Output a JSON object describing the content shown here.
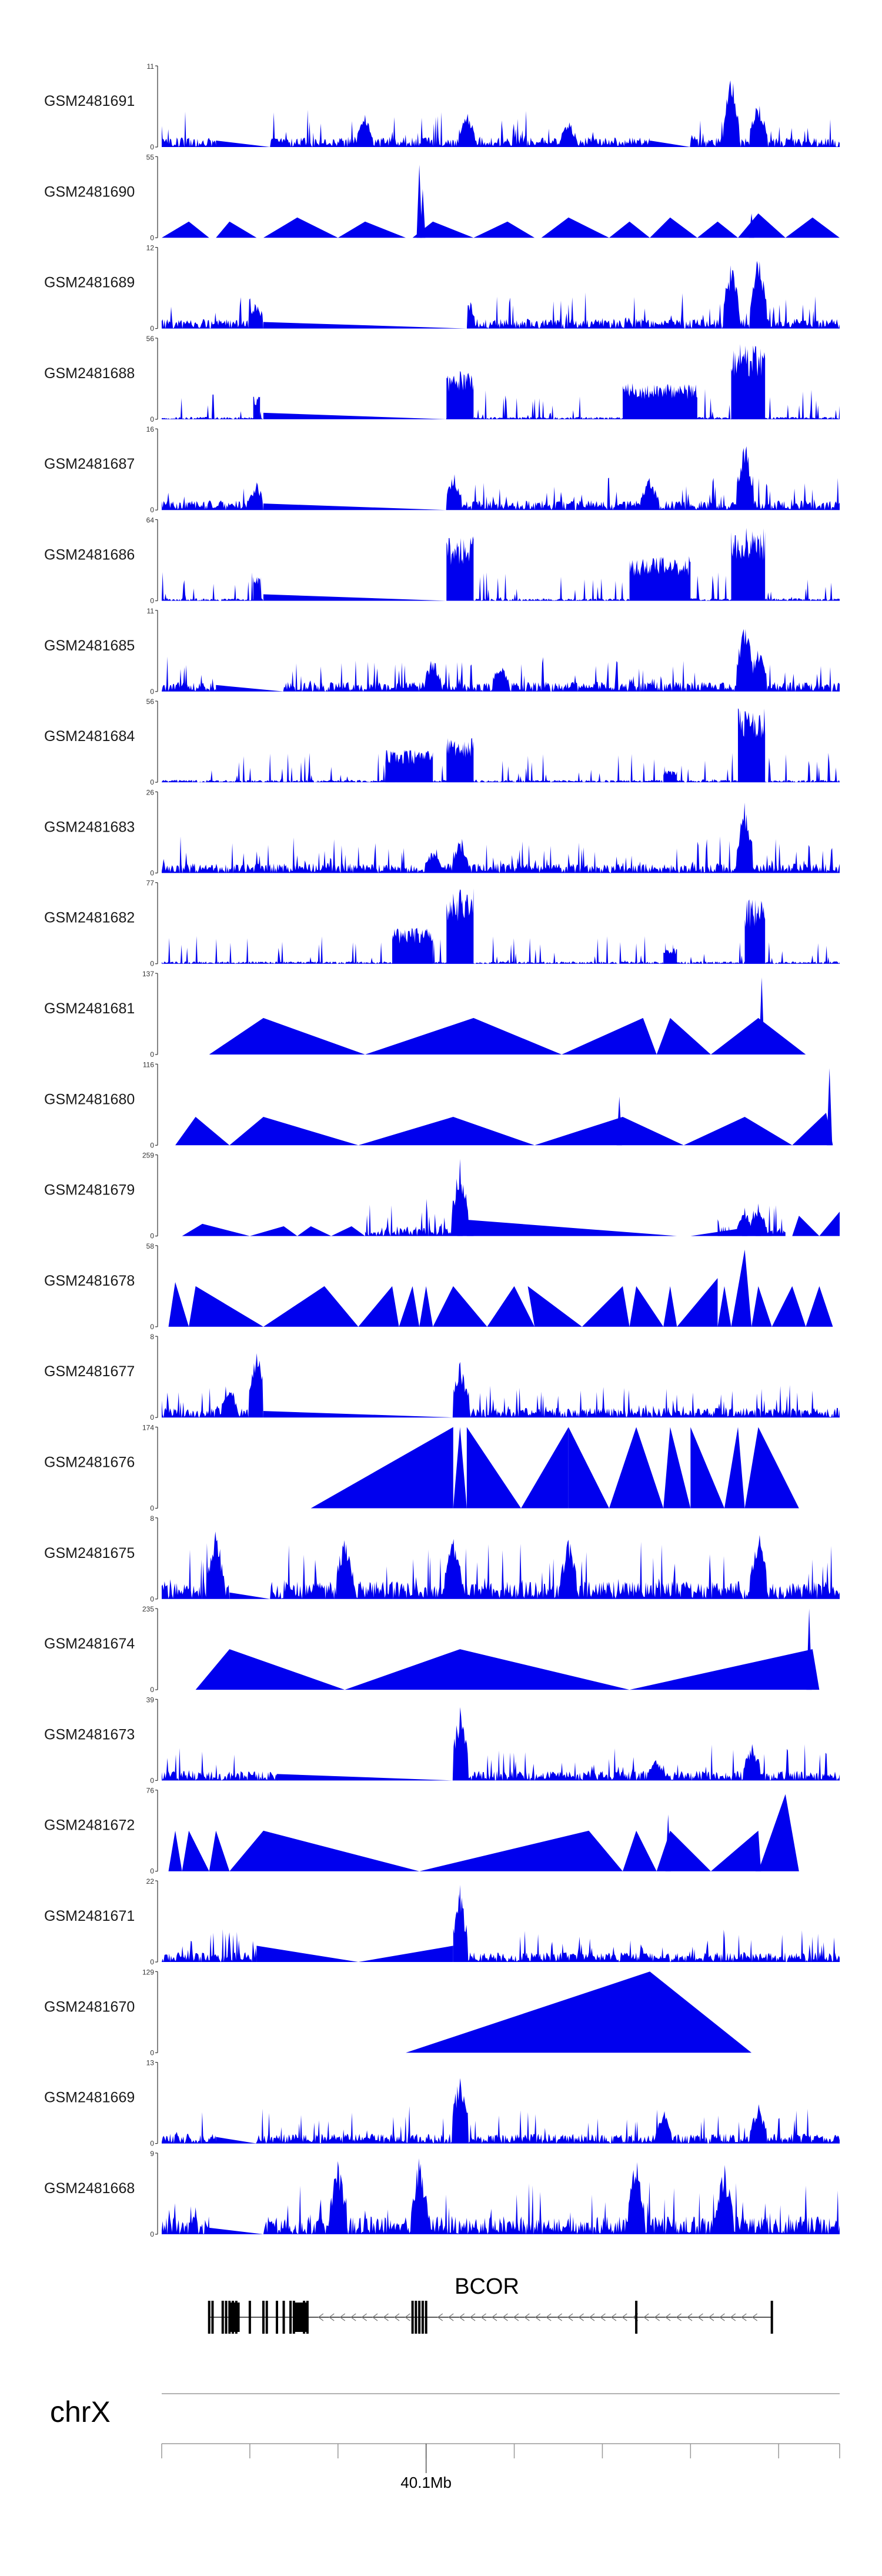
{
  "chart_data": {
    "type": "area",
    "title": "",
    "xlabel": "",
    "ylabel": "",
    "chromosome": "chrX",
    "gene": "BCOR",
    "position_label": "40.1Mb",
    "fill_color": "#0000EE",
    "x_range_mb": [
      39.98,
      40.24
    ],
    "tracks": [
      {
        "name": "GSM2481691",
        "ymax_label": "11",
        "ymin_label": "0",
        "ymax": 11,
        "style": "dense",
        "peaks": [
          [
            0.14,
            0.35
          ],
          [
            0.3,
            0.4
          ],
          [
            0.45,
            0.5
          ],
          [
            0.6,
            0.35
          ],
          [
            0.84,
            0.95
          ],
          [
            0.88,
            0.6
          ]
        ],
        "gaps": [
          [
            0.08,
            0.16
          ],
          [
            0.72,
            0.78
          ]
        ]
      },
      {
        "name": "GSM2481690",
        "ymax_label": "55",
        "ymin_label": "0",
        "ymax": 55,
        "style": "spiky",
        "tri": [
          [
            0.0,
            0.07,
            0.04,
            0.2
          ],
          [
            0.08,
            0.14,
            0.1,
            0.2
          ],
          [
            0.15,
            0.26,
            0.2,
            0.25
          ],
          [
            0.26,
            0.36,
            0.3,
            0.2
          ],
          [
            0.37,
            0.46,
            0.4,
            0.2
          ],
          [
            0.46,
            0.55,
            0.51,
            0.2
          ],
          [
            0.56,
            0.66,
            0.6,
            0.25
          ],
          [
            0.66,
            0.72,
            0.69,
            0.2
          ],
          [
            0.72,
            0.79,
            0.75,
            0.25
          ],
          [
            0.79,
            0.85,
            0.82,
            0.2
          ],
          [
            0.85,
            0.92,
            0.88,
            0.3
          ],
          [
            0.92,
            1.0,
            0.96,
            0.25
          ]
        ],
        "peaks": [
          [
            0.38,
            0.9
          ],
          [
            0.385,
            0.6
          ],
          [
            0.87,
            0.3
          ]
        ]
      },
      {
        "name": "GSM2481689",
        "ymax_label": "12",
        "ymin_label": "0",
        "ymax": 12,
        "style": "dense",
        "peaks": [
          [
            0.14,
            0.35
          ],
          [
            0.45,
            0.45
          ],
          [
            0.84,
            0.85
          ],
          [
            0.88,
            0.95
          ]
        ],
        "gaps": [
          [
            0.15,
            0.45
          ]
        ]
      },
      {
        "name": "GSM2481688",
        "ymax_label": "56",
        "ymin_label": "0",
        "ymax": 56,
        "style": "blocks",
        "blocks": [
          [
            0.135,
            0.145,
            0.3
          ],
          [
            0.42,
            0.46,
            0.6
          ],
          [
            0.68,
            0.79,
            0.45
          ],
          [
            0.84,
            0.89,
            0.95
          ]
        ],
        "gaps": [
          [
            0.15,
            0.42
          ]
        ]
      },
      {
        "name": "GSM2481687",
        "ymax_label": "16",
        "ymin_label": "0",
        "ymax": 16,
        "style": "dense",
        "peaks": [
          [
            0.14,
            0.35
          ],
          [
            0.43,
            0.5
          ],
          [
            0.72,
            0.45
          ],
          [
            0.86,
            0.9
          ]
        ],
        "gaps": [
          [
            0.15,
            0.42
          ]
        ]
      },
      {
        "name": "GSM2481686",
        "ymax_label": "64",
        "ymin_label": "0",
        "ymax": 64,
        "style": "blocks",
        "blocks": [
          [
            0.135,
            0.145,
            0.3
          ],
          [
            0.42,
            0.46,
            0.8
          ],
          [
            0.69,
            0.78,
            0.55
          ],
          [
            0.84,
            0.89,
            0.9
          ]
        ],
        "gaps": [
          [
            0.15,
            0.42
          ]
        ]
      },
      {
        "name": "GSM2481685",
        "ymax_label": "11",
        "ymin_label": "0",
        "ymax": 11,
        "style": "dense",
        "peaks": [
          [
            0.4,
            0.45
          ],
          [
            0.5,
            0.4
          ],
          [
            0.86,
            0.95
          ],
          [
            0.88,
            0.6
          ]
        ],
        "gaps": [
          [
            0.08,
            0.18
          ]
        ]
      },
      {
        "name": "GSM2481684",
        "ymax_label": "56",
        "ymin_label": "0",
        "ymax": 56,
        "style": "blocks",
        "blocks": [
          [
            0.33,
            0.4,
            0.4
          ],
          [
            0.42,
            0.46,
            0.55
          ],
          [
            0.74,
            0.76,
            0.15
          ],
          [
            0.85,
            0.89,
            0.95
          ]
        ],
        "gaps": []
      },
      {
        "name": "GSM2481683",
        "ymax_label": "26",
        "ymin_label": "0",
        "ymax": 26,
        "style": "dense",
        "peaks": [
          [
            0.4,
            0.3
          ],
          [
            0.44,
            0.45
          ],
          [
            0.86,
            0.9
          ]
        ],
        "gaps": []
      },
      {
        "name": "GSM2481682",
        "ymax_label": "77",
        "ymin_label": "0",
        "ymax": 77,
        "style": "blocks",
        "blocks": [
          [
            0.34,
            0.4,
            0.45
          ],
          [
            0.42,
            0.46,
            0.95
          ],
          [
            0.74,
            0.76,
            0.2
          ],
          [
            0.86,
            0.89,
            0.8
          ]
        ],
        "gaps": []
      },
      {
        "name": "GSM2481681",
        "ymax_label": "137",
        "ymin_label": "0",
        "ymax": 137,
        "style": "triangles",
        "tri": [
          [
            0.07,
            0.3,
            0.15,
            0.45
          ],
          [
            0.3,
            0.59,
            0.46,
            0.45
          ],
          [
            0.59,
            0.73,
            0.71,
            0.45
          ],
          [
            0.73,
            0.81,
            0.75,
            0.45
          ],
          [
            0.81,
            0.95,
            0.88,
            0.45
          ]
        ],
        "peaks": [
          [
            0.885,
            0.95
          ]
        ]
      },
      {
        "name": "GSM2481680",
        "ymax_label": "116",
        "ymin_label": "0",
        "ymax": 116,
        "style": "triangles",
        "tri": [
          [
            0.02,
            0.1,
            0.05,
            0.35
          ],
          [
            0.1,
            0.29,
            0.15,
            0.35
          ],
          [
            0.29,
            0.55,
            0.43,
            0.35
          ],
          [
            0.55,
            0.77,
            0.68,
            0.35
          ],
          [
            0.77,
            0.93,
            0.86,
            0.35
          ],
          [
            0.93,
            0.99,
            0.98,
            0.4
          ]
        ],
        "peaks": [
          [
            0.675,
            0.6
          ],
          [
            0.985,
            0.95
          ]
        ]
      },
      {
        "name": "GSM2481679",
        "ymax_label": "259",
        "ymin_label": "0",
        "ymax": 259,
        "style": "mixed",
        "tri": [
          [
            0.03,
            0.13,
            0.06,
            0.15
          ],
          [
            0.13,
            0.2,
            0.18,
            0.12
          ],
          [
            0.2,
            0.25,
            0.22,
            0.12
          ],
          [
            0.25,
            0.3,
            0.28,
            0.12
          ],
          [
            0.45,
            0.76,
            0.45,
            0.2
          ],
          [
            0.78,
            0.9,
            0.86,
            0.1
          ],
          [
            0.93,
            0.97,
            0.94,
            0.25
          ],
          [
            0.97,
            1.0,
            1.0,
            0.3
          ]
        ],
        "peaks": [
          [
            0.44,
            0.95
          ],
          [
            0.88,
            0.4
          ],
          [
            0.86,
            0.35
          ]
        ],
        "dense": [
          [
            0.3,
            0.46
          ],
          [
            0.82,
            0.92
          ]
        ]
      },
      {
        "name": "GSM2481678",
        "ymax_label": "58",
        "ymin_label": "0",
        "ymax": 58,
        "style": "triangles",
        "tri": [
          [
            0.01,
            0.04,
            0.02,
            0.55
          ],
          [
            0.04,
            0.15,
            0.05,
            0.5
          ],
          [
            0.15,
            0.29,
            0.24,
            0.5
          ],
          [
            0.29,
            0.35,
            0.34,
            0.5
          ],
          [
            0.35,
            0.38,
            0.37,
            0.5
          ],
          [
            0.38,
            0.4,
            0.39,
            0.5
          ],
          [
            0.4,
            0.48,
            0.43,
            0.5
          ],
          [
            0.48,
            0.55,
            0.52,
            0.5
          ],
          [
            0.55,
            0.62,
            0.54,
            0.5
          ],
          [
            0.62,
            0.69,
            0.68,
            0.5
          ],
          [
            0.69,
            0.74,
            0.7,
            0.5
          ],
          [
            0.74,
            0.76,
            0.75,
            0.5
          ],
          [
            0.76,
            0.82,
            0.82,
            0.6
          ],
          [
            0.82,
            0.84,
            0.83,
            0.5
          ],
          [
            0.84,
            0.87,
            0.86,
            0.95
          ],
          [
            0.87,
            0.9,
            0.88,
            0.5
          ],
          [
            0.9,
            0.95,
            0.93,
            0.5
          ],
          [
            0.95,
            0.99,
            0.97,
            0.5
          ]
        ],
        "peaks": []
      },
      {
        "name": "GSM2481677",
        "ymax_label": "8",
        "ymin_label": "0",
        "ymax": 8,
        "style": "dense",
        "peaks": [
          [
            0.14,
            0.95
          ],
          [
            0.44,
            0.7
          ],
          [
            0.1,
            0.4
          ]
        ],
        "gaps": [
          [
            0.15,
            0.43
          ]
        ]
      },
      {
        "name": "GSM2481676",
        "ymax_label": "174",
        "ymin_label": "0",
        "ymax": 174,
        "style": "triangles",
        "tri": [
          [
            0.22,
            0.43,
            0.43,
            1.0
          ],
          [
            0.43,
            0.45,
            0.44,
            1.0
          ],
          [
            0.45,
            0.53,
            0.45,
            1.0
          ],
          [
            0.53,
            0.6,
            0.6,
            1.0
          ],
          [
            0.6,
            0.66,
            0.6,
            1.0
          ],
          [
            0.66,
            0.74,
            0.7,
            1.0
          ],
          [
            0.74,
            0.78,
            0.75,
            1.0
          ],
          [
            0.78,
            0.83,
            0.78,
            1.0
          ],
          [
            0.83,
            0.86,
            0.85,
            1.0
          ],
          [
            0.86,
            0.94,
            0.88,
            1.0
          ]
        ],
        "peaks": []
      },
      {
        "name": "GSM2481675",
        "ymax_label": "8",
        "ymin_label": "0",
        "ymax": 8,
        "style": "spikyDense",
        "peaks": [
          [
            0.08,
            0.9
          ],
          [
            0.27,
            0.9
          ],
          [
            0.43,
            0.9
          ],
          [
            0.88,
            0.95
          ],
          [
            0.6,
            0.8
          ]
        ],
        "gaps": [
          [
            0.1,
            0.16
          ]
        ]
      },
      {
        "name": "GSM2481674",
        "ymax_label": "235",
        "ymin_label": "0",
        "ymax": 235,
        "style": "triangles",
        "tri": [
          [
            0.05,
            0.27,
            0.1,
            0.5
          ],
          [
            0.27,
            0.69,
            0.44,
            0.5
          ],
          [
            0.69,
            0.97,
            0.96,
            0.5
          ]
        ],
        "peaks": [
          [
            0.955,
            1.0
          ]
        ]
      },
      {
        "name": "GSM2481673",
        "ymax_label": "39",
        "ymin_label": "0",
        "ymax": 39,
        "style": "dense",
        "peaks": [
          [
            0.44,
            0.95
          ],
          [
            0.87,
            0.5
          ],
          [
            0.73,
            0.3
          ]
        ],
        "gaps": [
          [
            0.17,
            0.43
          ]
        ]
      },
      {
        "name": "GSM2481672",
        "ymax_label": "76",
        "ymin_label": "0",
        "ymax": 76,
        "style": "triangles",
        "tri": [
          [
            0.01,
            0.03,
            0.02,
            0.5
          ],
          [
            0.03,
            0.07,
            0.04,
            0.5
          ],
          [
            0.07,
            0.1,
            0.08,
            0.5
          ],
          [
            0.1,
            0.38,
            0.15,
            0.5
          ],
          [
            0.38,
            0.68,
            0.63,
            0.5
          ],
          [
            0.68,
            0.73,
            0.7,
            0.5
          ],
          [
            0.73,
            0.81,
            0.75,
            0.5
          ],
          [
            0.81,
            0.88,
            0.88,
            0.5
          ],
          [
            0.88,
            0.94,
            0.92,
            0.95
          ]
        ],
        "peaks": [
          [
            0.747,
            0.7
          ],
          [
            0.88,
            0.5
          ]
        ]
      },
      {
        "name": "GSM2481671",
        "ymax_label": "22",
        "ymin_label": "0",
        "ymax": 22,
        "style": "mixed",
        "tri": [
          [
            0.14,
            0.29,
            0.14,
            0.2
          ],
          [
            0.29,
            0.43,
            0.43,
            0.2
          ]
        ],
        "peaks": [
          [
            0.44,
            0.95
          ]
        ],
        "dense": [
          [
            0.0,
            0.14
          ],
          [
            0.43,
            1.0
          ]
        ]
      },
      {
        "name": "GSM2481670",
        "ymax_label": "129",
        "ymin_label": "0",
        "ymax": 129,
        "style": "triangles",
        "tri": [
          [
            0.36,
            0.87,
            0.72,
            1.0
          ]
        ],
        "peaks": []
      },
      {
        "name": "GSM2481669",
        "ymax_label": "13",
        "ymin_label": "0",
        "ymax": 13,
        "style": "dense",
        "peaks": [
          [
            0.44,
            0.95
          ],
          [
            0.74,
            0.45
          ],
          [
            0.88,
            0.55
          ]
        ],
        "gaps": [
          [
            0.08,
            0.14
          ]
        ]
      },
      {
        "name": "GSM2481668",
        "ymax_label": "9",
        "ymin_label": "0",
        "ymax": 9,
        "style": "spikyDense",
        "peaks": [
          [
            0.26,
            1.0
          ],
          [
            0.38,
            1.0
          ],
          [
            0.7,
            1.0
          ],
          [
            0.83,
            0.9
          ]
        ],
        "gaps": [
          [
            0.07,
            0.15
          ]
        ]
      }
    ],
    "gene_model": {
      "strand": "-",
      "start": 0.07,
      "end": 0.9,
      "exons": [
        0.07,
        0.075,
        0.09,
        0.095,
        0.1,
        0.105,
        0.11,
        0.13,
        0.15,
        0.155,
        0.17,
        0.18,
        0.19,
        0.195,
        0.21,
        0.215,
        0.37,
        0.375,
        0.38,
        0.385,
        0.39,
        0.7,
        0.9
      ],
      "wide_exons": [
        [
          0.1,
          0.115
        ],
        [
          0.195,
          0.215
        ]
      ]
    },
    "axis_ticks": [
      0.0,
      0.13,
      0.26,
      0.39,
      0.52,
      0.65,
      0.78,
      0.91,
      1.0
    ],
    "labeled_tick": 0.39
  }
}
